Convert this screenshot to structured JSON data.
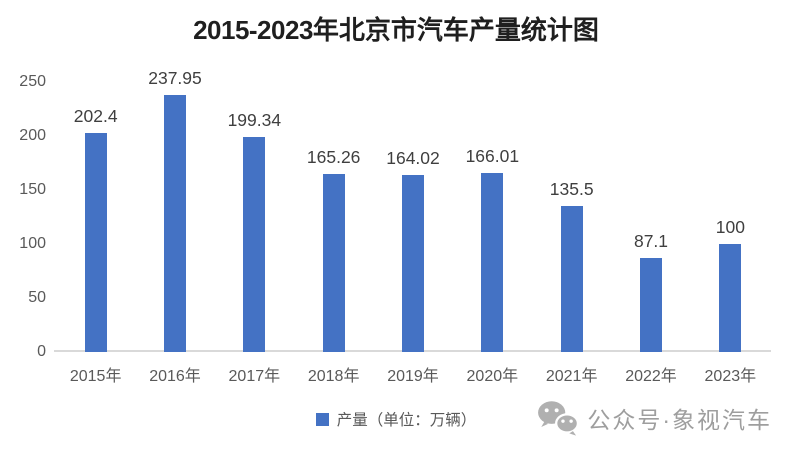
{
  "title": {
    "range": "2015-2023",
    "rest": "年北京市汽车产量统计图",
    "full": "2015-2023年北京市汽车产量统计图"
  },
  "chart_data": {
    "type": "bar",
    "title": "2015-2023年北京市汽车产量统计图",
    "categories": [
      "2015年",
      "2016年",
      "2017年",
      "2018年",
      "2019年",
      "2020年",
      "2021年",
      "2022年",
      "2023年"
    ],
    "values": [
      202.4,
      237.95,
      199.34,
      165.26,
      164.02,
      166.01,
      135.5,
      87.1,
      100
    ],
    "value_labels": [
      "202.4",
      "237.95",
      "199.34",
      "165.26",
      "164.02",
      "166.01",
      "135.5",
      "87.1",
      "100"
    ],
    "xlabel": "",
    "ylabel": "",
    "ylim": [
      0,
      250
    ],
    "yticks": [
      0,
      50,
      100,
      150,
      200,
      250
    ],
    "grid": false,
    "legend_position": "bottom",
    "legend": "产量（单位：万辆）",
    "bar_color": "#4472C4"
  },
  "legend": {
    "series_label": "产量（单位：万辆）"
  },
  "watermark": {
    "icon": "wechat-icon",
    "text": "公众号·象视汽车"
  },
  "colors": {
    "bar": "#4472C4",
    "axis_line": "#d9d9d9",
    "value_label": "#3f3f3f",
    "tick_label": "#595959",
    "title": "#1f1f1f",
    "watermark": "#9e9e9e"
  }
}
